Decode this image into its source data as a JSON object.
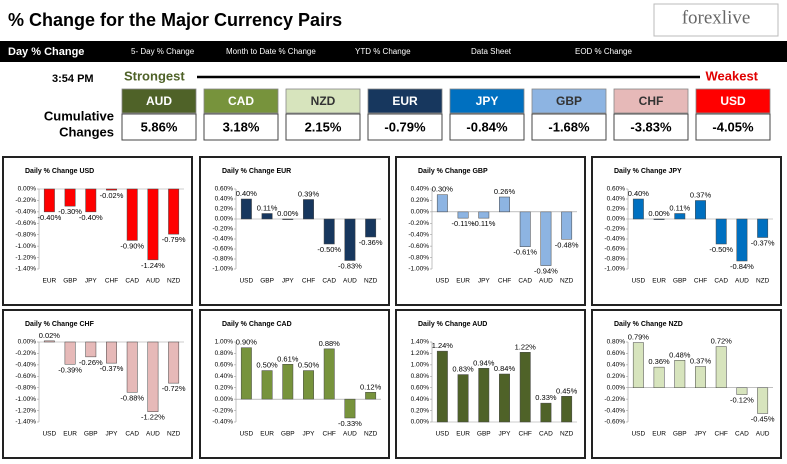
{
  "header": {
    "title": "% Change for the Major Currency Pairs",
    "logo": "forexlive"
  },
  "tabs": [
    "Day % Change",
    "5- Day % Change",
    "Month to Date % Change",
    "YTD % Change",
    "Data Sheet",
    "EOD % Change"
  ],
  "strength": {
    "time": "3:54 PM",
    "strongest": "Strongest",
    "weakest": "Weakest",
    "label": [
      "Cumulative",
      "Changes"
    ],
    "currencies": [
      {
        "name": "AUD",
        "change": "5.86%",
        "color": "#4f6228"
      },
      {
        "name": "CAD",
        "change": "3.18%",
        "color": "#77933c"
      },
      {
        "name": "NZD",
        "change": "2.15%",
        "color": "#d7e4bd"
      },
      {
        "name": "EUR",
        "change": "-0.79%",
        "color": "#17375e"
      },
      {
        "name": "JPY",
        "change": "-0.84%",
        "color": "#0070c0"
      },
      {
        "name": "GBP",
        "change": "-1.68%",
        "color": "#8db4e2"
      },
      {
        "name": "CHF",
        "change": "-3.83%",
        "color": "#e6b9b8"
      },
      {
        "name": "USD",
        "change": "-4.05%",
        "color": "#ff0000"
      }
    ]
  },
  "chart_data": [
    {
      "type": "bar",
      "title": "Daily % Change USD",
      "color": "#ff0000",
      "categories": [
        "EUR",
        "GBP",
        "JPY",
        "CHF",
        "CAD",
        "AUD",
        "NZD"
      ],
      "values": [
        -0.4,
        -0.3,
        -0.4,
        -0.02,
        -0.9,
        -1.24,
        -0.79
      ],
      "value_labels": [
        "-0.40%",
        "-0.30%",
        "-0.40%",
        "-0.02%",
        "-0.90%",
        "-1.24%",
        "-0.79%"
      ],
      "ylim": [
        -1.4,
        0.0
      ],
      "yticks": [
        {
          "value": -1.4,
          "label": "-1.40%"
        },
        {
          "value": -1.2,
          "label": "-1.20%"
        },
        {
          "value": -1.0,
          "label": "-1.00%"
        },
        {
          "value": -0.8,
          "label": "-0.80%"
        },
        {
          "value": -0.6,
          "label": "-0.60%"
        },
        {
          "value": -0.4,
          "label": "-0.40%"
        },
        {
          "value": -0.2,
          "label": "-0.20%"
        },
        {
          "value": 0,
          "label": "0.00%"
        }
      ]
    },
    {
      "type": "bar",
      "title": "Daily % Change EUR",
      "color": "#17375e",
      "categories": [
        "USD",
        "GBP",
        "JPY",
        "CHF",
        "CAD",
        "AUD",
        "NZD"
      ],
      "values": [
        0.4,
        0.11,
        0.0,
        0.39,
        -0.5,
        -0.83,
        -0.36
      ],
      "value_labels": [
        "0.40%",
        "0.11%",
        "0.00%",
        "0.39%",
        "-0.50%",
        "-0.83%",
        "-0.36%"
      ],
      "ylim": [
        -1.0,
        0.6
      ],
      "yticks": [
        {
          "value": -1.0,
          "label": "-1.00%"
        },
        {
          "value": -0.8,
          "label": "-0.80%"
        },
        {
          "value": -0.6,
          "label": "-0.60%"
        },
        {
          "value": -0.4,
          "label": "-0.40%"
        },
        {
          "value": -0.2,
          "label": "-0.20%"
        },
        {
          "value": 0,
          "label": "0.00%"
        },
        {
          "value": 0.2,
          "label": "0.20%"
        },
        {
          "value": 0.4,
          "label": "0.40%"
        },
        {
          "value": 0.6,
          "label": "0.60%"
        }
      ]
    },
    {
      "type": "bar",
      "title": "Daily % Change GBP",
      "color": "#8db4e2",
      "categories": [
        "USD",
        "EUR",
        "JPY",
        "CHF",
        "CAD",
        "AUD",
        "NZD"
      ],
      "values": [
        0.3,
        -0.11,
        -0.11,
        0.26,
        -0.61,
        -0.94,
        -0.48
      ],
      "value_labels": [
        "0.30%",
        "-0.11%",
        "-0.11%",
        "0.26%",
        "-0.61%",
        "-0.94%",
        "-0.48%"
      ],
      "ylim": [
        -1.0,
        0.4
      ],
      "yticks": [
        {
          "value": -1.0,
          "label": "-1.00%"
        },
        {
          "value": -0.8,
          "label": "-0.80%"
        },
        {
          "value": -0.6,
          "label": "-0.60%"
        },
        {
          "value": -0.4,
          "label": "-0.40%"
        },
        {
          "value": -0.2,
          "label": "-0.20%"
        },
        {
          "value": 0,
          "label": "0.00%"
        },
        {
          "value": 0.2,
          "label": "0.20%"
        },
        {
          "value": 0.4,
          "label": "0.40%"
        }
      ]
    },
    {
      "type": "bar",
      "title": "Daily % Change JPY",
      "color": "#0070c0",
      "categories": [
        "USD",
        "EUR",
        "GBP",
        "CHF",
        "CAD",
        "AUD",
        "NZD"
      ],
      "values": [
        0.4,
        0.0,
        0.11,
        0.37,
        -0.5,
        -0.84,
        -0.37
      ],
      "value_labels": [
        "0.40%",
        "0.00%",
        "0.11%",
        "0.37%",
        "-0.50%",
        "-0.84%",
        "-0.37%"
      ],
      "ylim": [
        -1.0,
        0.6
      ],
      "yticks": [
        {
          "value": -1.0,
          "label": "-1.00%"
        },
        {
          "value": -0.8,
          "label": "-0.80%"
        },
        {
          "value": -0.6,
          "label": "-0.60%"
        },
        {
          "value": -0.4,
          "label": "-0.40%"
        },
        {
          "value": -0.2,
          "label": "-0.20%"
        },
        {
          "value": 0,
          "label": "0.00%"
        },
        {
          "value": 0.2,
          "label": "0.20%"
        },
        {
          "value": 0.4,
          "label": "0.40%"
        },
        {
          "value": 0.6,
          "label": "0.60%"
        }
      ]
    },
    {
      "type": "bar",
      "title": "Daily % Change CHF",
      "color": "#e6b9b8",
      "categories": [
        "USD",
        "EUR",
        "GBP",
        "JPY",
        "CAD",
        "AUD",
        "NZD"
      ],
      "values": [
        0.02,
        -0.39,
        -0.26,
        -0.37,
        -0.88,
        -1.22,
        -0.72
      ],
      "value_labels": [
        "0.02%",
        "-0.39%",
        "-0.26%",
        "-0.37%",
        "-0.88%",
        "-1.22%",
        "-0.72%"
      ],
      "ylim": [
        -1.4,
        0.0
      ],
      "yticks": [
        {
          "value": -1.4,
          "label": "-1.40%"
        },
        {
          "value": -1.2,
          "label": "-1.20%"
        },
        {
          "value": -1.0,
          "label": "-1.00%"
        },
        {
          "value": -0.8,
          "label": "-0.80%"
        },
        {
          "value": -0.6,
          "label": "-0.60%"
        },
        {
          "value": -0.4,
          "label": "-0.40%"
        },
        {
          "value": -0.2,
          "label": "-0.20%"
        },
        {
          "value": 0,
          "label": "0.00%"
        }
      ]
    },
    {
      "type": "bar",
      "title": "Daily % Change CAD",
      "color": "#77933c",
      "categories": [
        "USD",
        "EUR",
        "GBP",
        "JPY",
        "CHF",
        "AUD",
        "NZD"
      ],
      "values": [
        0.9,
        0.5,
        0.61,
        0.5,
        0.88,
        -0.33,
        0.12
      ],
      "value_labels": [
        "0.90%",
        "0.50%",
        "0.61%",
        "0.50%",
        "0.88%",
        "-0.33%",
        "0.12%"
      ],
      "ylim": [
        -0.4,
        1.0
      ],
      "yticks": [
        {
          "value": -0.4,
          "label": "-0.40%"
        },
        {
          "value": -0.2,
          "label": "-0.20%"
        },
        {
          "value": 0,
          "label": "0.00%"
        },
        {
          "value": 0.2,
          "label": "0.20%"
        },
        {
          "value": 0.4,
          "label": "0.40%"
        },
        {
          "value": 0.6,
          "label": "0.60%"
        },
        {
          "value": 0.8,
          "label": "0.80%"
        },
        {
          "value": 1.0,
          "label": "1.00%"
        }
      ]
    },
    {
      "type": "bar",
      "title": "Daily % Change AUD",
      "color": "#4f6228",
      "categories": [
        "USD",
        "EUR",
        "GBP",
        "JPY",
        "CHF",
        "CAD",
        "NZD"
      ],
      "values": [
        1.24,
        0.83,
        0.94,
        0.84,
        1.22,
        0.33,
        0.45
      ],
      "value_labels": [
        "1.24%",
        "0.83%",
        "0.94%",
        "0.84%",
        "1.22%",
        "0.33%",
        "0.45%"
      ],
      "ylim": [
        0.0,
        1.4
      ],
      "yticks": [
        {
          "value": 0,
          "label": "0.00%"
        },
        {
          "value": 0.2,
          "label": "0.20%"
        },
        {
          "value": 0.4,
          "label": "0.40%"
        },
        {
          "value": 0.6,
          "label": "0.60%"
        },
        {
          "value": 0.8,
          "label": "0.80%"
        },
        {
          "value": 1.0,
          "label": "1.00%"
        },
        {
          "value": 1.2,
          "label": "1.20%"
        },
        {
          "value": 1.4,
          "label": "1.40%"
        }
      ]
    },
    {
      "type": "bar",
      "title": "Daily % Change NZD",
      "color": "#d7e4bd",
      "categories": [
        "USD",
        "EUR",
        "GBP",
        "JPY",
        "CHF",
        "CAD",
        "AUD"
      ],
      "values": [
        0.79,
        0.36,
        0.48,
        0.37,
        0.72,
        -0.12,
        -0.45
      ],
      "value_labels": [
        "0.79%",
        "0.36%",
        "0.48%",
        "0.37%",
        "0.72%",
        "-0.12%",
        "-0.45%"
      ],
      "ylim": [
        -0.6,
        0.8
      ],
      "yticks": [
        {
          "value": -0.6,
          "label": "-0.60%"
        },
        {
          "value": -0.4,
          "label": "-0.40%"
        },
        {
          "value": -0.2,
          "label": "-0.20%"
        },
        {
          "value": 0,
          "label": "0.00%"
        },
        {
          "value": 0.2,
          "label": "0.20%"
        },
        {
          "value": 0.4,
          "label": "0.40%"
        },
        {
          "value": 0.6,
          "label": "0.60%"
        },
        {
          "value": 0.8,
          "label": "0.80%"
        }
      ]
    }
  ]
}
